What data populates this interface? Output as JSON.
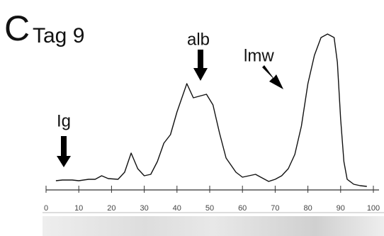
{
  "chart_data": {
    "type": "line",
    "title": "C",
    "subtitle": "Tag 9",
    "annotations": [
      "Ig",
      "alb",
      "lmw"
    ],
    "x": [
      3,
      5,
      8,
      10,
      13,
      15,
      17,
      19,
      22,
      24,
      26,
      28,
      30,
      32,
      34,
      36,
      38,
      40,
      43,
      45,
      49,
      51,
      53,
      55,
      58,
      60,
      62,
      64,
      66,
      68,
      70,
      72,
      74,
      76,
      78,
      80,
      82,
      84,
      86,
      88,
      89,
      90,
      91,
      92,
      94,
      96,
      98
    ],
    "values": [
      13,
      14,
      14,
      13,
      15,
      15,
      20,
      16,
      15,
      25,
      52,
      30,
      20,
      22,
      40,
      66,
      78,
      110,
      150,
      130,
      135,
      120,
      80,
      45,
      25,
      18,
      20,
      22,
      17,
      12,
      15,
      20,
      30,
      50,
      90,
      150,
      190,
      215,
      220,
      215,
      180,
      100,
      40,
      15,
      8,
      6,
      5
    ],
    "color": "#111111",
    "xlim": [
      0,
      100
    ],
    "xticks": [
      0,
      10,
      20,
      30,
      40,
      50,
      60,
      70,
      80,
      90,
      100
    ]
  }
}
